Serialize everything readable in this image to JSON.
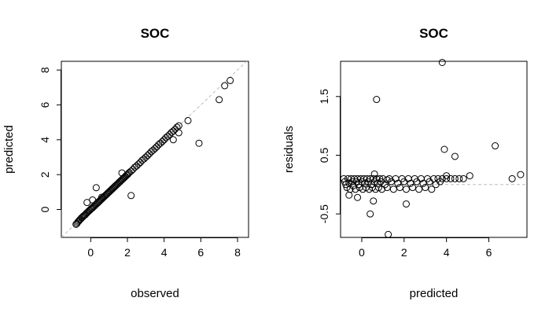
{
  "chart_data": [
    {
      "type": "scatter",
      "title": "SOC",
      "xlabel": "observed",
      "ylabel": "predicted",
      "xlim": [
        -1.6,
        8.6
      ],
      "ylim": [
        -1.6,
        8.5
      ],
      "xticks": [
        0,
        2,
        4,
        6,
        8
      ],
      "yticks": [
        0,
        2,
        4,
        6,
        8
      ],
      "xtick_labels": [
        "0",
        "2",
        "4",
        "6",
        "8"
      ],
      "ytick_labels": [
        "0",
        "2",
        "4",
        "6",
        "8"
      ],
      "reference_line": {
        "type": "identity",
        "style": "dashed",
        "color": "#bdbdbd"
      },
      "marker": "open-circle",
      "points": [
        [
          -0.8,
          -0.85
        ],
        [
          -0.75,
          -0.8
        ],
        [
          -0.7,
          -0.72
        ],
        [
          -0.65,
          -0.66
        ],
        [
          -0.6,
          -0.6
        ],
        [
          -0.55,
          -0.55
        ],
        [
          -0.5,
          -0.48
        ],
        [
          -0.45,
          -0.44
        ],
        [
          -0.4,
          -0.38
        ],
        [
          -0.35,
          -0.34
        ],
        [
          -0.3,
          -0.3
        ],
        [
          -0.25,
          -0.24
        ],
        [
          -0.2,
          -0.18
        ],
        [
          -0.15,
          -0.14
        ],
        [
          -0.1,
          -0.08
        ],
        [
          -0.05,
          -0.04
        ],
        [
          0.0,
          0.02
        ],
        [
          0.05,
          0.06
        ],
        [
          0.1,
          0.1
        ],
        [
          0.15,
          0.16
        ],
        [
          0.2,
          0.2
        ],
        [
          0.25,
          0.26
        ],
        [
          0.3,
          0.3
        ],
        [
          0.35,
          0.36
        ],
        [
          0.4,
          0.4
        ],
        [
          0.45,
          0.46
        ],
        [
          0.5,
          0.5
        ],
        [
          0.55,
          0.56
        ],
        [
          0.6,
          0.6
        ],
        [
          0.65,
          0.66
        ],
        [
          0.7,
          0.7
        ],
        [
          0.75,
          0.76
        ],
        [
          0.8,
          0.8
        ],
        [
          0.85,
          0.86
        ],
        [
          0.9,
          0.9
        ],
        [
          0.95,
          0.96
        ],
        [
          1.0,
          1.0
        ],
        [
          1.05,
          1.06
        ],
        [
          1.1,
          1.1
        ],
        [
          1.15,
          1.16
        ],
        [
          1.2,
          1.2
        ],
        [
          1.25,
          1.26
        ],
        [
          1.3,
          1.3
        ],
        [
          1.35,
          1.36
        ],
        [
          1.4,
          1.4
        ],
        [
          1.45,
          1.46
        ],
        [
          1.5,
          1.5
        ],
        [
          1.55,
          1.56
        ],
        [
          1.6,
          1.6
        ],
        [
          1.65,
          1.66
        ],
        [
          1.7,
          1.7
        ],
        [
          1.75,
          1.76
        ],
        [
          1.8,
          1.8
        ],
        [
          1.85,
          1.86
        ],
        [
          1.9,
          1.9
        ],
        [
          1.95,
          1.96
        ],
        [
          2.0,
          2.0
        ],
        [
          2.05,
          2.06
        ],
        [
          2.1,
          2.12
        ],
        [
          2.2,
          2.2
        ],
        [
          2.3,
          2.3
        ],
        [
          2.4,
          2.42
        ],
        [
          2.5,
          2.5
        ],
        [
          2.6,
          2.6
        ],
        [
          2.7,
          2.7
        ],
        [
          2.8,
          2.82
        ],
        [
          2.9,
          2.9
        ],
        [
          3.0,
          3.0
        ],
        [
          3.1,
          3.1
        ],
        [
          3.2,
          3.2
        ],
        [
          3.3,
          3.32
        ],
        [
          3.4,
          3.4
        ],
        [
          3.5,
          3.5
        ],
        [
          3.6,
          3.6
        ],
        [
          3.7,
          3.72
        ],
        [
          3.8,
          3.8
        ],
        [
          3.9,
          3.9
        ],
        [
          4.0,
          4.0
        ],
        [
          4.1,
          4.12
        ],
        [
          4.2,
          4.2
        ],
        [
          4.3,
          4.3
        ],
        [
          4.4,
          4.42
        ],
        [
          4.5,
          4.5
        ],
        [
          4.6,
          4.6
        ],
        [
          4.7,
          4.72
        ],
        [
          4.8,
          4.8
        ],
        [
          -0.2,
          0.4
        ],
        [
          0.3,
          1.25
        ],
        [
          0.1,
          0.55
        ],
        [
          0.6,
          0.7
        ],
        [
          1.7,
          2.1
        ],
        [
          2.2,
          0.8
        ],
        [
          4.5,
          4.0
        ],
        [
          4.8,
          4.4
        ],
        [
          5.3,
          5.1
        ],
        [
          5.9,
          3.8
        ],
        [
          7.0,
          6.3
        ],
        [
          7.3,
          7.1
        ],
        [
          7.6,
          7.4
        ]
      ]
    },
    {
      "type": "scatter",
      "title": "SOC",
      "xlabel": "predicted",
      "ylabel": "residuals",
      "xlim": [
        -1.0,
        7.8
      ],
      "ylim": [
        -0.9,
        2.1
      ],
      "xticks": [
        0,
        2,
        4,
        6
      ],
      "yticks": [
        -0.5,
        0.5,
        1.5
      ],
      "xtick_labels": [
        "0",
        "2",
        "4",
        "6"
      ],
      "ytick_labels": [
        "-0.5",
        "0.5",
        "1.5"
      ],
      "reference_line": {
        "type": "horizontal",
        "y": 0,
        "style": "dashed",
        "color": "#bdbdbd"
      },
      "marker": "open-circle",
      "points": [
        [
          -0.85,
          0.1
        ],
        [
          -0.8,
          0.05
        ],
        [
          -0.75,
          0.0
        ],
        [
          -0.7,
          -0.05
        ],
        [
          -0.65,
          0.1
        ],
        [
          -0.6,
          0.02
        ],
        [
          -0.55,
          -0.08
        ],
        [
          -0.5,
          0.1
        ],
        [
          -0.45,
          0.05
        ],
        [
          -0.4,
          -0.02
        ],
        [
          -0.35,
          0.1
        ],
        [
          -0.3,
          -0.08
        ],
        [
          -0.25,
          0.05
        ],
        [
          -0.2,
          0.1
        ],
        [
          -0.15,
          0.0
        ],
        [
          -0.1,
          -0.05
        ],
        [
          -0.05,
          0.1
        ],
        [
          0.0,
          0.05
        ],
        [
          0.05,
          -0.08
        ],
        [
          0.1,
          0.1
        ],
        [
          0.15,
          0.02
        ],
        [
          0.2,
          -0.05
        ],
        [
          0.25,
          0.1
        ],
        [
          0.3,
          0.05
        ],
        [
          0.35,
          -0.08
        ],
        [
          0.4,
          0.1
        ],
        [
          0.45,
          0.0
        ],
        [
          0.5,
          -0.05
        ],
        [
          0.55,
          0.1
        ],
        [
          0.6,
          0.05
        ],
        [
          0.65,
          -0.08
        ],
        [
          0.7,
          0.1
        ],
        [
          0.75,
          0.02
        ],
        [
          0.8,
          -0.05
        ],
        [
          0.85,
          0.1
        ],
        [
          0.9,
          0.05
        ],
        [
          0.95,
          -0.08
        ],
        [
          1.0,
          0.1
        ],
        [
          1.1,
          0.0
        ],
        [
          1.2,
          -0.05
        ],
        [
          1.3,
          0.1
        ],
        [
          1.4,
          0.05
        ],
        [
          1.5,
          -0.08
        ],
        [
          1.6,
          0.1
        ],
        [
          1.7,
          0.02
        ],
        [
          1.8,
          -0.05
        ],
        [
          1.9,
          0.1
        ],
        [
          2.0,
          0.05
        ],
        [
          2.1,
          -0.08
        ],
        [
          2.2,
          0.1
        ],
        [
          2.3,
          0.02
        ],
        [
          2.4,
          -0.05
        ],
        [
          2.5,
          0.1
        ],
        [
          2.6,
          0.05
        ],
        [
          2.7,
          -0.08
        ],
        [
          2.8,
          0.1
        ],
        [
          2.9,
          0.02
        ],
        [
          3.0,
          -0.05
        ],
        [
          3.1,
          0.1
        ],
        [
          3.2,
          0.05
        ],
        [
          3.3,
          -0.08
        ],
        [
          3.4,
          0.1
        ],
        [
          3.5,
          0.0
        ],
        [
          3.6,
          0.1
        ],
        [
          3.7,
          0.05
        ],
        [
          3.8,
          0.1
        ],
        [
          4.0,
          0.1
        ],
        [
          4.2,
          0.1
        ],
        [
          4.4,
          0.1
        ],
        [
          4.6,
          0.1
        ],
        [
          4.8,
          0.1
        ],
        [
          -0.6,
          -0.18
        ],
        [
          -0.2,
          -0.22
        ],
        [
          0.6,
          0.18
        ],
        [
          1.2,
          0.08
        ],
        [
          2.1,
          -0.33
        ],
        [
          0.4,
          -0.5
        ],
        [
          0.7,
          1.45
        ],
        [
          1.25,
          -0.85
        ],
        [
          3.8,
          2.08
        ],
        [
          3.9,
          0.6
        ],
        [
          4.4,
          0.48
        ],
        [
          6.3,
          0.66
        ],
        [
          4.0,
          0.15
        ],
        [
          5.1,
          0.15
        ],
        [
          7.1,
          0.1
        ],
        [
          7.5,
          0.17
        ],
        [
          0.55,
          -0.28
        ]
      ]
    }
  ]
}
